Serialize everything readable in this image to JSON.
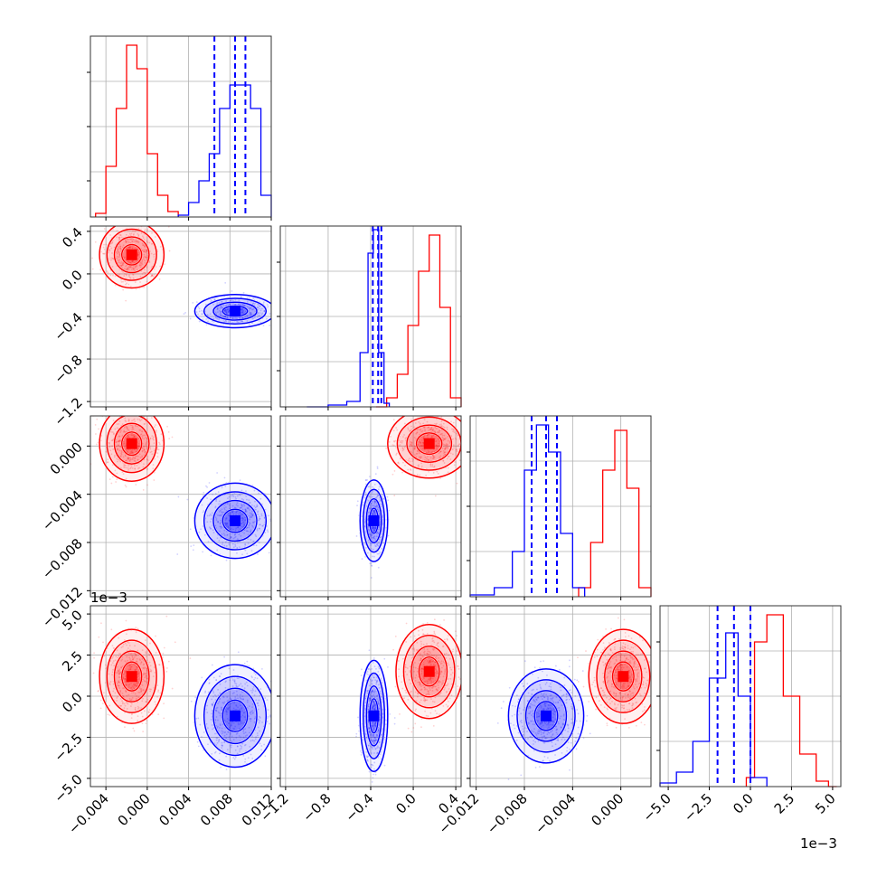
{
  "chart_data": {
    "type": "corner",
    "title": "",
    "series": [
      {
        "name": "",
        "color": "#ff0000"
      },
      {
        "name": "",
        "color": "#0000ff"
      }
    ],
    "quantile_lines_color": "#0000ff",
    "grid": true,
    "dims": [
      {
        "range": [
          -0.0055,
          0.012
        ],
        "ticks": [
          -0.004,
          0.0,
          0.004,
          0.008,
          0.012
        ],
        "tick_labels": [
          "−0.004",
          "0.000",
          "0.004",
          "0.008",
          "0.012"
        ],
        "offset_label": "",
        "quantiles_blue": [
          0.0065,
          0.0085,
          0.0095
        ],
        "hist": {
          "red": {
            "centers": [
              -0.0045,
              -0.0035,
              -0.0025,
              -0.0015,
              -0.0005,
              0.0005,
              0.0015,
              0.0025
            ],
            "counts": [
              0.02,
              0.28,
              0.6,
              0.95,
              0.82,
              0.35,
              0.12,
              0.03
            ]
          },
          "blue": {
            "centers": [
              0.0035,
              0.0045,
              0.0055,
              0.0065,
              0.0075,
              0.0085,
              0.0095,
              0.0105,
              0.0115
            ],
            "counts": [
              0.01,
              0.08,
              0.2,
              0.35,
              0.6,
              0.73,
              0.73,
              0.6,
              0.12
            ]
          }
        }
      },
      {
        "range": [
          -1.25,
          0.45
        ],
        "ticks": [
          -1.2,
          -0.8,
          -0.4,
          0.0,
          0.4
        ],
        "tick_labels": [
          "−1.2",
          "−0.8",
          "−0.4",
          "0.0",
          "0.4"
        ],
        "offset_label": "",
        "quantiles_blue": [
          -0.38,
          -0.33,
          -0.3
        ],
        "hist": {
          "red": {
            "centers": [
              -0.3,
              -0.2,
              -0.1,
              0.0,
              0.1,
              0.2,
              0.3,
              0.4
            ],
            "counts": [
              0.0,
              0.05,
              0.18,
              0.45,
              0.75,
              0.95,
              0.55,
              0.05
            ]
          },
          "blue": {
            "centers": [
              -0.9,
              -0.7,
              -0.55,
              -0.45,
              -0.4,
              -0.35,
              -0.3,
              -0.25
            ],
            "counts": [
              0.0,
              0.01,
              0.03,
              0.3,
              0.85,
              0.98,
              0.3,
              0.02
            ]
          }
        }
      },
      {
        "range": [
          -0.0125,
          0.0025
        ],
        "ticks": [
          -0.012,
          -0.008,
          -0.004,
          0.0
        ],
        "tick_labels": [
          "−0.012",
          "−0.008",
          "−0.004",
          "0.000"
        ],
        "offset_label": "",
        "quantiles_blue": [
          -0.0074,
          -0.0062,
          -0.0053
        ],
        "hist": {
          "red": {
            "centers": [
              -0.003,
              -0.002,
              -0.001,
              0.0,
              0.001,
              0.002
            ],
            "counts": [
              0.05,
              0.3,
              0.7,
              0.92,
              0.6,
              0.05
            ]
          },
          "blue": {
            "centers": [
              -0.0115,
              -0.0095,
              -0.0085,
              -0.0075,
              -0.0065,
              -0.0055,
              -0.0045,
              -0.0035
            ],
            "counts": [
              0.01,
              0.05,
              0.25,
              0.7,
              0.95,
              0.8,
              0.35,
              0.05
            ]
          }
        }
      },
      {
        "range": [
          -0.0055,
          0.0055
        ],
        "ticks": [
          -0.005,
          -0.0025,
          0.0,
          0.0025,
          0.005
        ],
        "tick_labels": [
          "−5.0",
          "−2.5",
          "0.0",
          "2.5",
          "5.0"
        ],
        "offset_label": "1e−3",
        "quantiles_blue": [
          -0.002,
          -0.001,
          0.0
        ],
        "hist": {
          "red": {
            "centers": [
              0.0,
              0.0005,
              0.0015,
              0.0025,
              0.0035,
              0.0045,
              0.005
            ],
            "counts": [
              0.05,
              0.8,
              0.95,
              0.5,
              0.18,
              0.03,
              0.0
            ]
          },
          "blue": {
            "centers": [
              -0.005,
              -0.004,
              -0.003,
              -0.002,
              -0.001,
              -0.0005,
              0.0005
            ],
            "counts": [
              0.02,
              0.08,
              0.25,
              0.6,
              0.85,
              0.5,
              0.05
            ]
          }
        }
      }
    ],
    "pairs": [
      {
        "row": 1,
        "col": 0,
        "red": {
          "mean": [
            -0.0015,
            0.18
          ],
          "sd": [
            0.0012,
            0.12
          ]
        },
        "blue": {
          "mean": [
            0.0085,
            -0.35
          ],
          "sd": [
            0.0015,
            0.06
          ]
        }
      },
      {
        "row": 2,
        "col": 0,
        "red": {
          "mean": [
            -0.0015,
            0.0002
          ],
          "sd": [
            0.0012,
            0.0012
          ]
        },
        "blue": {
          "mean": [
            0.0085,
            -0.0062
          ],
          "sd": [
            0.0015,
            0.0012
          ]
        }
      },
      {
        "row": 2,
        "col": 1,
        "red": {
          "mean": [
            0.15,
            0.0002
          ],
          "sd": [
            0.15,
            0.0011
          ]
        },
        "blue": {
          "mean": [
            -0.37,
            -0.0062
          ],
          "sd": [
            0.05,
            0.0013
          ]
        }
      },
      {
        "row": 3,
        "col": 0,
        "red": {
          "mean": [
            -0.0015,
            0.0012
          ],
          "sd": [
            0.0012,
            0.0011
          ]
        },
        "blue": {
          "mean": [
            0.0085,
            -0.0012
          ],
          "sd": [
            0.0015,
            0.0012
          ]
        }
      },
      {
        "row": 3,
        "col": 1,
        "red": {
          "mean": [
            0.15,
            0.0015
          ],
          "sd": [
            0.12,
            0.0011
          ]
        },
        "blue": {
          "mean": [
            -0.37,
            -0.0012
          ],
          "sd": [
            0.05,
            0.0013
          ]
        }
      },
      {
        "row": 3,
        "col": 2,
        "red": {
          "mean": [
            0.0002,
            0.0012
          ],
          "sd": [
            0.0011,
            0.0011
          ]
        },
        "blue": {
          "mean": [
            -0.0062,
            -0.0012
          ],
          "sd": [
            0.0012,
            0.0011
          ]
        }
      }
    ]
  }
}
